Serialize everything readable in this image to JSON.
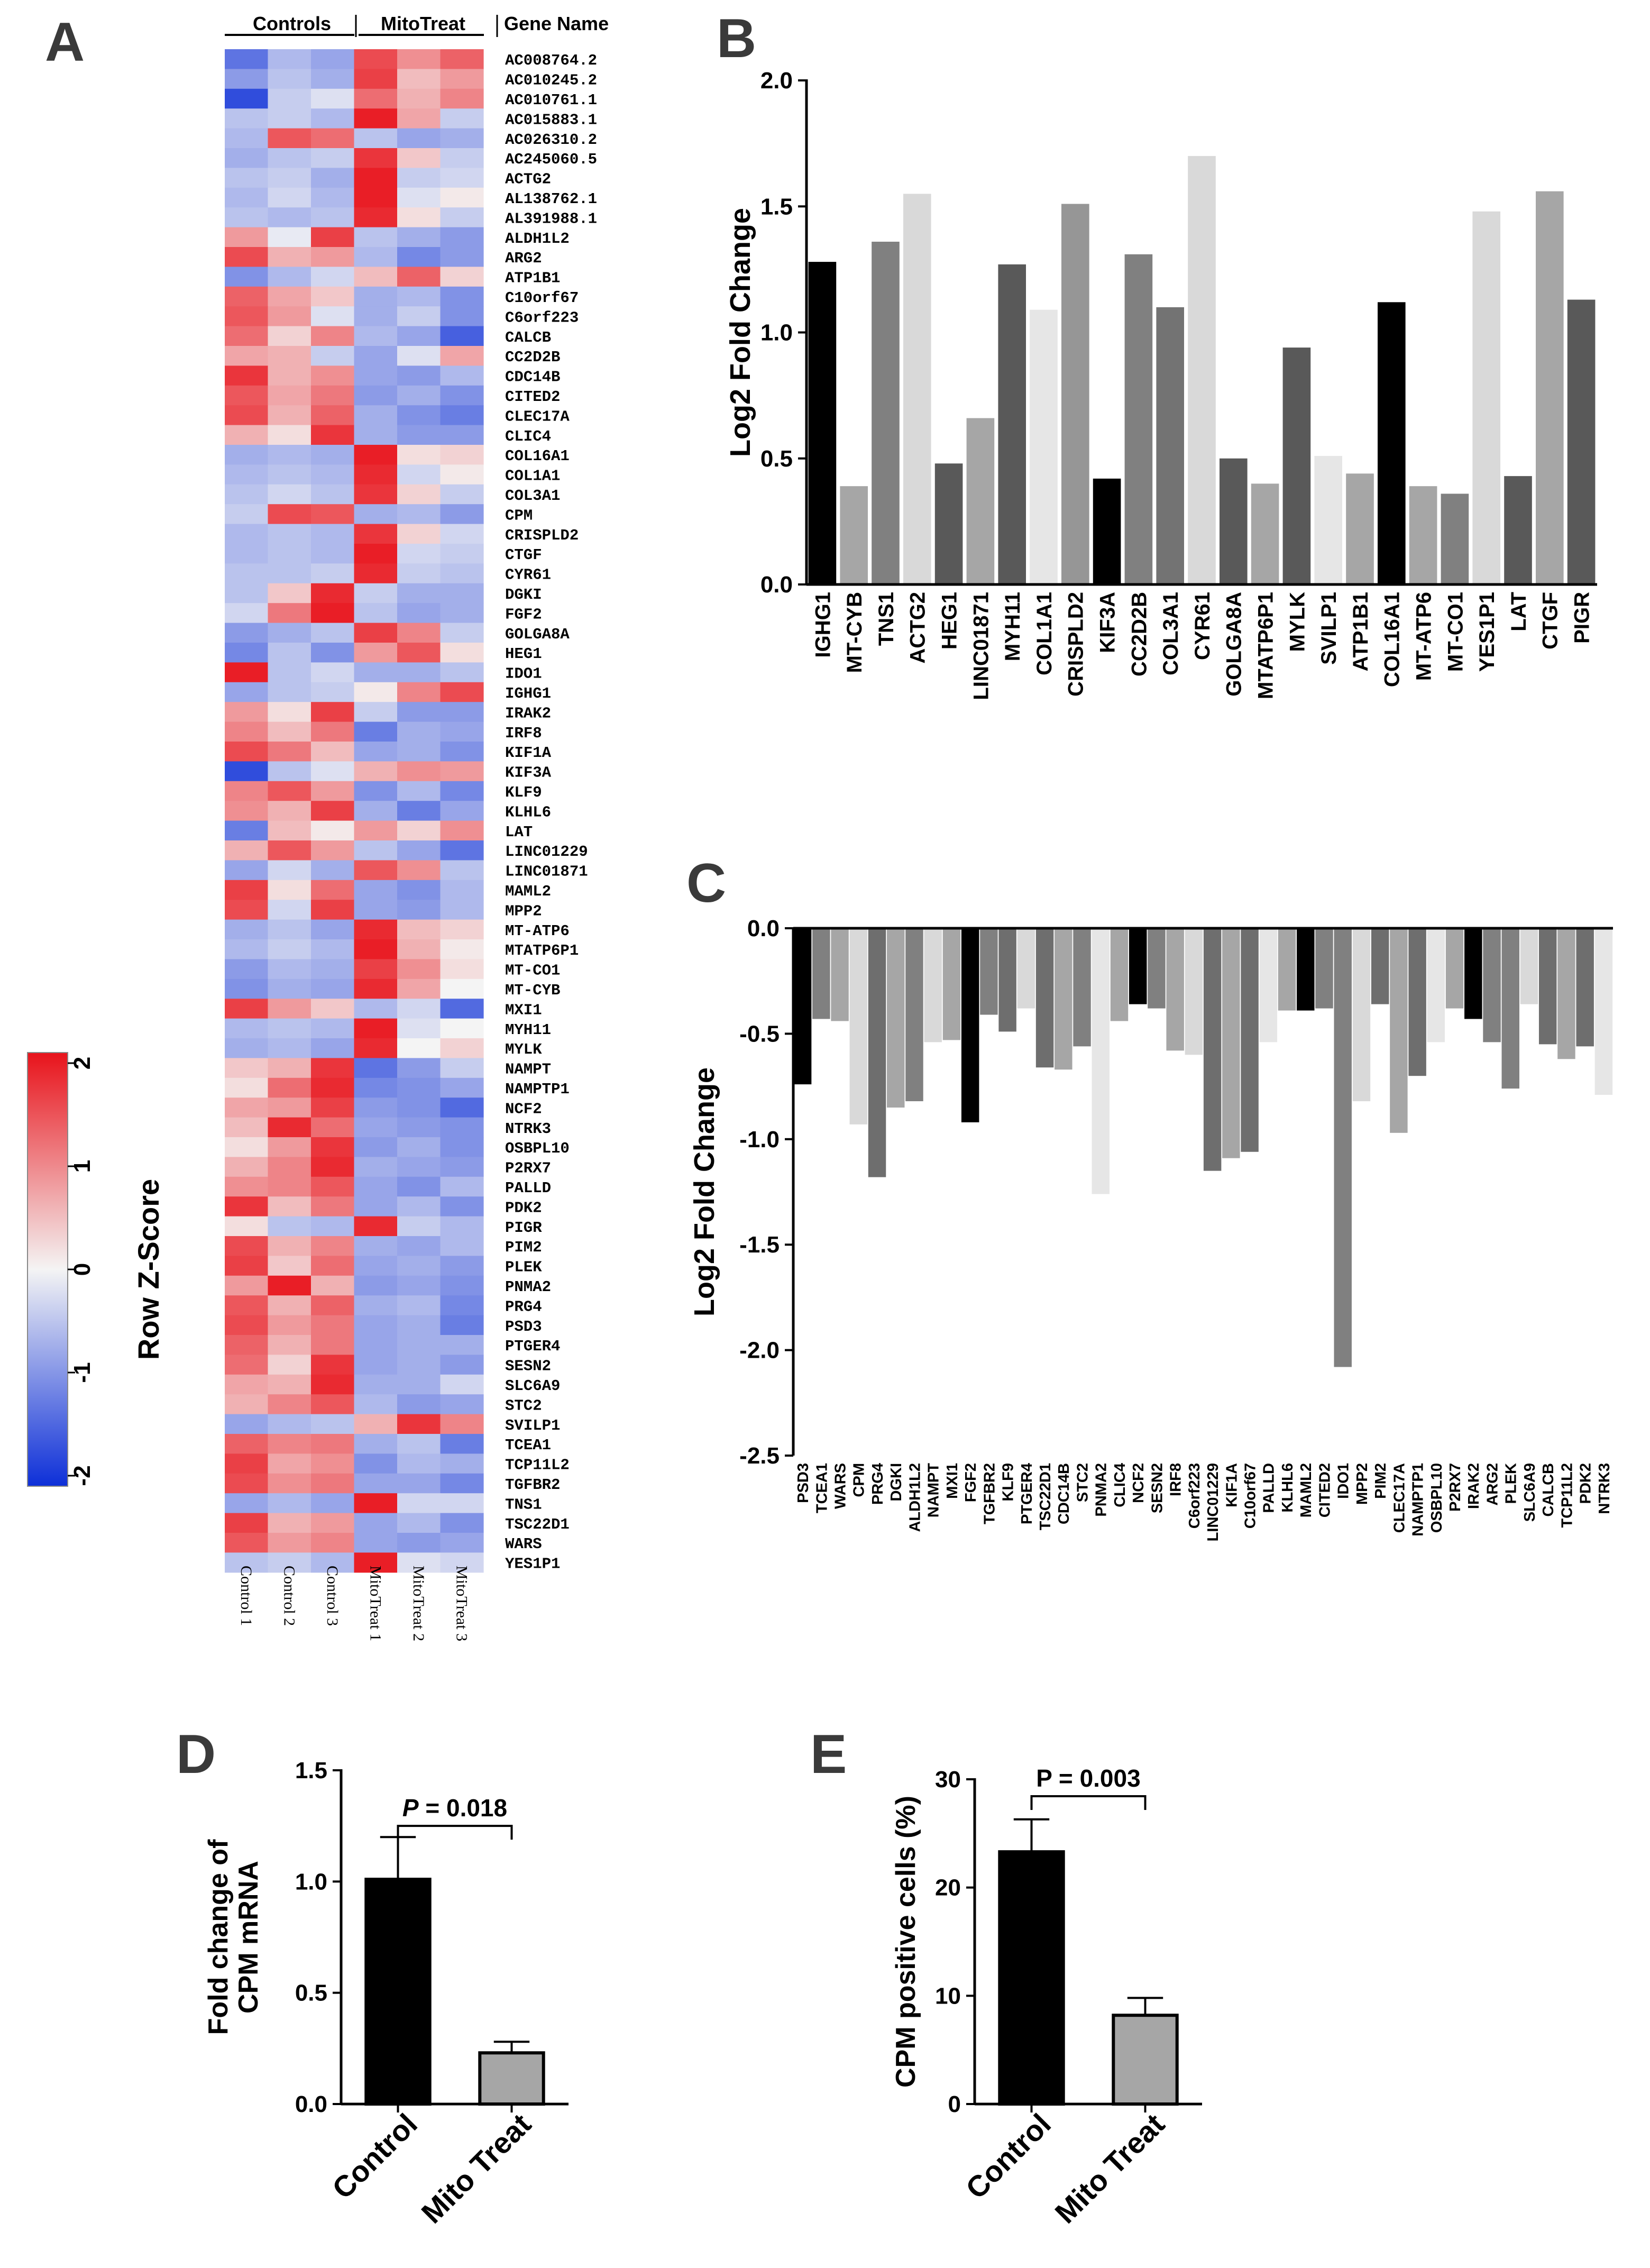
{
  "figure_labels": [
    "A",
    "B",
    "C",
    "D",
    "E"
  ],
  "heatmap": {
    "group_headers": [
      "Controls",
      "MitoTreat",
      "Gene Name"
    ],
    "samples": [
      "Control 1",
      "Control 2",
      "Control 3",
      "MitoTreat 1",
      "MitoTreat 2",
      "MitoTreat 3"
    ],
    "colorbar_title": "Row Z-Score",
    "colorbar_ticks": [
      "2",
      "1",
      "0",
      "-1",
      "-2"
    ],
    "colors": {
      "high": "#e8131b",
      "mid": "#f4f4f4",
      "low": "#0d2fd8"
    },
    "genes": [
      "AC008764.2",
      "AC010245.2",
      "AC010761.1",
      "AC015883.1",
      "AC026310.2",
      "AC245060.5",
      "ACTG2",
      "AL138762.1",
      "AL391988.1",
      "ALDH1L2",
      "ARG2",
      "ATP1B1",
      "C10orf67",
      "C6orf223",
      "CALCB",
      "CC2D2B",
      "CDC14B",
      "CITED2",
      "CLEC17A",
      "CLIC4",
      "COL16A1",
      "COL1A1",
      "COL3A1",
      "CPM",
      "CRISPLD2",
      "CTGF",
      "CYR61",
      "DGKI",
      "FGF2",
      "GOLGA8A",
      "HEG1",
      "IDO1",
      "IGHG1",
      "IRAK2",
      "IRF8",
      "KIF1A",
      "KIF3A",
      "KLF9",
      "KLHL6",
      "LAT",
      "LINC01229",
      "LINC01871",
      "MAML2",
      "MPP2",
      "MT-ATP6",
      "MTATP6P1",
      "MT-CO1",
      "MT-CYB",
      "MXI1",
      "MYH11",
      "MYLK",
      "NAMPT",
      "NAMPTP1",
      "NCF2",
      "NTRK3",
      "OSBPL10",
      "P2RX7",
      "PALLD",
      "PDK2",
      "PIGR",
      "PIM2",
      "PLEK",
      "PNMA2",
      "PRG4",
      "PSD3",
      "PTGER4",
      "SESN2",
      "SLC6A9",
      "STC2",
      "SVILP1",
      "TCEA1",
      "TCP11L2",
      "TGFBR2",
      "TNS1",
      "TSC22D1",
      "WARS",
      "YES1P1"
    ],
    "zscores": [
      [
        -1.3,
        -0.6,
        -0.8,
        1.5,
        0.9,
        1.3
      ],
      [
        -0.9,
        -0.5,
        -0.7,
        1.6,
        0.5,
        0.8
      ],
      [
        -1.7,
        -0.4,
        -0.2,
        1.2,
        0.6,
        1.0
      ],
      [
        -0.5,
        -0.4,
        -0.6,
        1.9,
        0.7,
        -0.4
      ],
      [
        -0.6,
        1.4,
        1.2,
        -0.5,
        -0.8,
        -0.7
      ],
      [
        -0.7,
        -0.5,
        -0.4,
        1.7,
        0.4,
        -0.4
      ],
      [
        -0.5,
        -0.4,
        -0.7,
        1.9,
        -0.4,
        -0.3
      ],
      [
        -0.6,
        -0.3,
        -0.6,
        1.9,
        -0.2,
        0.1
      ],
      [
        -0.5,
        -0.6,
        -0.5,
        1.8,
        0.2,
        -0.4
      ],
      [
        0.8,
        -0.1,
        1.6,
        -0.5,
        -0.7,
        -0.9
      ],
      [
        1.5,
        0.6,
        0.8,
        -0.6,
        -1.1,
        -0.9
      ],
      [
        -1.0,
        -0.6,
        -0.3,
        0.5,
        1.3,
        0.3
      ],
      [
        1.3,
        0.7,
        0.4,
        -0.7,
        -0.6,
        -1.0
      ],
      [
        1.4,
        0.8,
        -0.2,
        -0.7,
        -0.4,
        -1.0
      ],
      [
        1.2,
        0.3,
        1.0,
        -0.6,
        -0.8,
        -1.5
      ],
      [
        0.7,
        0.6,
        -0.4,
        -0.8,
        -0.2,
        0.7
      ],
      [
        1.7,
        0.6,
        0.9,
        -0.8,
        -0.9,
        -0.6
      ],
      [
        1.4,
        0.7,
        1.1,
        -0.9,
        -0.7,
        -1.0
      ],
      [
        1.5,
        0.6,
        1.3,
        -0.7,
        -1.0,
        -1.2
      ],
      [
        0.6,
        0.2,
        1.7,
        -0.7,
        -0.9,
        -0.9
      ],
      [
        -0.7,
        -0.6,
        -0.7,
        1.9,
        0.2,
        0.3
      ],
      [
        -0.6,
        -0.5,
        -0.6,
        1.8,
        -0.3,
        0.1
      ],
      [
        -0.5,
        -0.3,
        -0.5,
        1.7,
        0.3,
        -0.4
      ],
      [
        -0.4,
        1.5,
        1.4,
        -0.7,
        -0.6,
        -0.9
      ],
      [
        -0.6,
        -0.5,
        -0.6,
        1.7,
        0.3,
        -0.3
      ],
      [
        -0.6,
        -0.5,
        -0.6,
        1.9,
        -0.3,
        -0.4
      ],
      [
        -0.5,
        -0.5,
        -0.4,
        1.8,
        -0.4,
        -0.5
      ],
      [
        -0.5,
        0.4,
        1.8,
        -0.4,
        -0.7,
        -0.7
      ],
      [
        -0.3,
        1.1,
        1.9,
        -0.5,
        -0.8,
        -0.7
      ],
      [
        -0.9,
        -0.7,
        -0.5,
        1.6,
        1.0,
        -0.4
      ],
      [
        -1.1,
        -0.5,
        -1.0,
        0.8,
        1.4,
        0.2
      ],
      [
        1.9,
        -0.5,
        -0.3,
        -0.7,
        -0.7,
        -0.5
      ],
      [
        -0.8,
        -0.5,
        -0.4,
        0.1,
        1.0,
        1.5
      ],
      [
        0.8,
        0.2,
        1.6,
        -0.4,
        -0.9,
        -0.9
      ],
      [
        1.0,
        0.5,
        1.1,
        -1.2,
        -0.7,
        -0.8
      ],
      [
        1.5,
        1.1,
        0.5,
        -0.8,
        -0.7,
        -1.0
      ],
      [
        -1.7,
        -0.5,
        -0.2,
        0.6,
        0.9,
        0.8
      ],
      [
        1.0,
        1.4,
        0.8,
        -1.0,
        -0.6,
        -1.1
      ],
      [
        0.9,
        0.6,
        1.6,
        -0.7,
        -1.2,
        -0.8
      ],
      [
        -1.2,
        0.5,
        0.1,
        0.8,
        0.3,
        0.9
      ],
      [
        0.6,
        1.4,
        0.8,
        -0.5,
        -0.8,
        -1.3
      ],
      [
        -0.8,
        -0.3,
        -0.7,
        1.4,
        0.9,
        -0.5
      ],
      [
        1.6,
        0.2,
        1.2,
        -0.8,
        -1.0,
        -0.6
      ],
      [
        1.5,
        -0.3,
        1.6,
        -0.8,
        -0.9,
        -0.6
      ],
      [
        -0.7,
        -0.5,
        -0.8,
        1.8,
        0.5,
        0.3
      ],
      [
        -0.6,
        -0.4,
        -0.6,
        1.9,
        0.6,
        0.1
      ],
      [
        -0.9,
        -0.6,
        -0.7,
        1.6,
        0.9,
        0.2
      ],
      [
        -1.0,
        -0.7,
        -0.8,
        1.8,
        0.7,
        0.0
      ],
      [
        1.6,
        0.8,
        0.4,
        -0.6,
        -0.3,
        -1.4
      ],
      [
        -0.6,
        -0.5,
        -0.6,
        1.9,
        -0.2,
        0.0
      ],
      [
        -0.7,
        -0.6,
        -0.8,
        1.8,
        0.0,
        0.3
      ],
      [
        0.4,
        0.6,
        1.7,
        -1.3,
        -0.9,
        -0.4
      ],
      [
        0.2,
        1.2,
        1.8,
        -1.1,
        -1.0,
        -0.8
      ],
      [
        0.7,
        0.8,
        1.6,
        -0.9,
        -1.0,
        -1.4
      ],
      [
        0.5,
        1.8,
        1.2,
        -0.8,
        -0.9,
        -1.0
      ],
      [
        0.2,
        0.8,
        1.7,
        -0.9,
        -0.7,
        -1.0
      ],
      [
        0.6,
        1.0,
        1.8,
        -0.7,
        -0.8,
        -0.9
      ],
      [
        0.9,
        1.0,
        1.4,
        -0.8,
        -1.0,
        -0.6
      ],
      [
        1.7,
        0.5,
        1.1,
        -0.8,
        -0.6,
        -1.0
      ],
      [
        0.2,
        -0.5,
        -0.6,
        1.8,
        -0.4,
        -0.6
      ],
      [
        1.5,
        0.6,
        1.0,
        -0.7,
        -0.8,
        -0.6
      ],
      [
        1.6,
        0.4,
        1.2,
        -0.8,
        -0.7,
        -0.9
      ],
      [
        0.8,
        1.9,
        0.6,
        -0.9,
        -0.8,
        -1.0
      ],
      [
        1.4,
        0.6,
        1.3,
        -0.7,
        -0.6,
        -1.1
      ],
      [
        1.5,
        0.8,
        1.1,
        -0.8,
        -0.7,
        -1.2
      ],
      [
        1.3,
        0.6,
        1.1,
        -0.8,
        -0.7,
        -0.7
      ],
      [
        1.2,
        0.3,
        1.7,
        -0.8,
        -0.7,
        -0.9
      ],
      [
        0.7,
        0.6,
        1.8,
        -0.7,
        -0.7,
        -0.3
      ],
      [
        0.6,
        1.0,
        1.4,
        -0.6,
        -0.9,
        -0.8
      ],
      [
        -0.8,
        -0.6,
        -0.5,
        0.6,
        1.7,
        1.0
      ],
      [
        1.3,
        1.0,
        1.1,
        -0.7,
        -0.5,
        -1.2
      ],
      [
        1.6,
        0.7,
        0.9,
        -1.0,
        -0.6,
        -0.7
      ],
      [
        1.5,
        0.9,
        1.1,
        -0.8,
        -0.8,
        -1.1
      ],
      [
        -0.8,
        -0.6,
        -0.8,
        1.9,
        -0.3,
        -0.3
      ],
      [
        1.6,
        0.6,
        0.8,
        -0.8,
        -0.6,
        -1.0
      ],
      [
        1.4,
        0.8,
        1.0,
        -0.8,
        -0.9,
        -0.8
      ],
      [
        -0.5,
        -0.4,
        -0.6,
        1.9,
        -0.2,
        -0.3
      ]
    ]
  },
  "chart_data": [
    {
      "panel": "B",
      "type": "bar",
      "ylabel": "Log2 Fold Change",
      "ylim": [
        0,
        2.0
      ],
      "yticks": [
        "0.0",
        "0.5",
        "1.0",
        "1.5",
        "2.0"
      ],
      "categories": [
        "IGHG1",
        "MT-CYB",
        "TNS1",
        "ACTG2",
        "HEG1",
        "LINC01871",
        "MYH11",
        "COL1A1",
        "CRISPLD2",
        "KIF3A",
        "CC2D2B",
        "COL3A1",
        "CYR61",
        "GOLGA8A",
        "MTATP6P1",
        "MYLK",
        "SVILP1",
        "ATP1B1",
        "COL16A1",
        "MT-ATP6",
        "MT-CO1",
        "YES1P1",
        "LAT",
        "CTGF",
        "PIGR"
      ],
      "values": [
        1.28,
        0.39,
        1.36,
        1.55,
        0.48,
        0.66,
        1.27,
        1.09,
        1.51,
        0.42,
        1.31,
        1.1,
        1.7,
        0.5,
        0.4,
        0.94,
        0.51,
        0.44,
        1.12,
        0.39,
        0.36,
        1.48,
        0.43,
        1.56,
        1.13
      ],
      "bar_colors": [
        "#000000",
        "#a6a6a6",
        "#808080",
        "#d9d9d9",
        "#595959",
        "#a6a6a6",
        "#595959",
        "#e6e6e6",
        "#969696",
        "#000000",
        "#808080",
        "#737373",
        "#d9d9d9",
        "#595959",
        "#a6a6a6",
        "#595959",
        "#e6e6e6",
        "#a6a6a6",
        "#000000",
        "#a6a6a6",
        "#808080",
        "#d9d9d9",
        "#595959",
        "#a6a6a6",
        "#595959"
      ]
    },
    {
      "panel": "C",
      "type": "bar",
      "ylabel": "Log2 Fold Change",
      "ylim": [
        -2.5,
        0.0
      ],
      "yticks": [
        "0.0",
        "-0.5",
        "-1.0",
        "-1.5",
        "-2.0",
        "-2.5"
      ],
      "categories": [
        "PSD3",
        "TCEA1",
        "WARS",
        "CPM",
        "PRG4",
        "DGKI",
        "ALDH1L2",
        "NAMPT",
        "MXI1",
        "FGF2",
        "TGFBR2",
        "KLF9",
        "PTGER4",
        "TSC22D1",
        "CDC14B",
        "STC2",
        "PNMA2",
        "CLIC4",
        "NCF2",
        "SESN2",
        "IRF8",
        "C6orf223",
        "LINC01229",
        "KIF1A",
        "C10orf67",
        "PALLD",
        "KLHL6",
        "MAML2",
        "CITED2",
        "IDO1",
        "MPP2",
        "PIM2",
        "CLEC17A",
        "NAMPTP1",
        "OSBPL10",
        "P2RX7",
        "IRAK2",
        "ARG2",
        "PLEK",
        "SLC6A9",
        "CALCB",
        "TCP11L2",
        "PDK2",
        "NTRK3"
      ],
      "values": [
        -0.74,
        -0.43,
        -0.44,
        -0.93,
        -1.18,
        -0.85,
        -0.82,
        -0.54,
        -0.53,
        -0.92,
        -0.41,
        -0.49,
        -0.38,
        -0.66,
        -0.67,
        -0.56,
        -1.26,
        -0.44,
        -0.36,
        -0.38,
        -0.58,
        -0.6,
        -1.15,
        -1.09,
        -1.06,
        -0.54,
        -0.39,
        -0.39,
        -0.38,
        -2.08,
        -0.82,
        -0.36,
        -0.97,
        -0.7,
        -0.54,
        -0.38,
        -0.43,
        -0.54,
        -0.76,
        -0.36,
        -0.55,
        -0.62,
        -0.56,
        -0.79
      ],
      "bar_colors": [
        "#000000",
        "#808080",
        "#a6a6a6",
        "#d9d9d9",
        "#6e6e6e",
        "#a6a6a6",
        "#808080",
        "#d9d9d9",
        "#a6a6a6",
        "#000000",
        "#808080",
        "#6e6e6e",
        "#d9d9d9",
        "#6e6e6e",
        "#a6a6a6",
        "#808080",
        "#e6e6e6",
        "#a6a6a6",
        "#000000",
        "#808080",
        "#a6a6a6",
        "#d9d9d9",
        "#6e6e6e",
        "#a6a6a6",
        "#6e6e6e",
        "#e6e6e6",
        "#a6a6a6",
        "#000000",
        "#808080",
        "#808080",
        "#d9d9d9",
        "#6e6e6e",
        "#a6a6a6",
        "#6e6e6e",
        "#e6e6e6",
        "#a6a6a6",
        "#000000",
        "#808080",
        "#808080",
        "#d9d9d9",
        "#6e6e6e",
        "#a6a6a6",
        "#6e6e6e",
        "#e6e6e6"
      ]
    },
    {
      "panel": "D",
      "type": "bar",
      "ylabel": "Fold change of CPM mRNA",
      "ylabel_lines": [
        "Fold change of",
        "CPM mRNA"
      ],
      "ylim": [
        0,
        1.5
      ],
      "yticks": [
        "0.0",
        "0.5",
        "1.0",
        "1.5"
      ],
      "categories": [
        "Control",
        "Mito Treat"
      ],
      "values": [
        1.01,
        0.23
      ],
      "errors": [
        0.19,
        0.05
      ],
      "bar_colors": [
        "#000000",
        "#a6a6a6"
      ],
      "annotation": {
        "italic": "P",
        "rest": " = 0.018"
      }
    },
    {
      "panel": "E",
      "type": "bar",
      "ylabel": "CPM positive cells (%)",
      "ylim": [
        0,
        30
      ],
      "yticks": [
        "0",
        "10",
        "20",
        "30"
      ],
      "categories": [
        "Control",
        "Mito Treat"
      ],
      "values": [
        23.3,
        8.2
      ],
      "errors": [
        3.0,
        1.6
      ],
      "bar_colors": [
        "#000000",
        "#a6a6a6"
      ],
      "annotation": {
        "italic": "",
        "rest": "P = 0.003"
      }
    }
  ]
}
